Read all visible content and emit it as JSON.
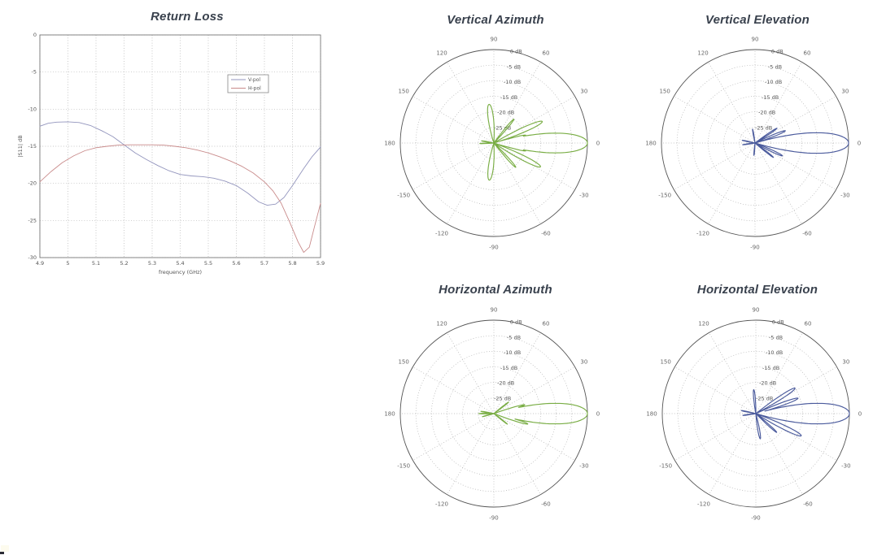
{
  "page": {
    "background": "#ffffff",
    "title_color": "#39414d",
    "grid_color": "#aaaaaa",
    "tick_color": "#555555"
  },
  "chart_data": [
    {
      "id": "return-loss",
      "type": "line",
      "title": "Return Loss",
      "xlabel": "frequency (GHz)",
      "ylabel": "|S11| dB",
      "xlim": [
        4.9,
        5.9
      ],
      "ylim": [
        -30,
        0
      ],
      "xticks": [
        "4.9",
        "5",
        "5.1",
        "5.2",
        "5.3",
        "5.4",
        "5.5",
        "5.6",
        "5.7",
        "5.8",
        "5.9"
      ],
      "yticks": [
        "0",
        "-5",
        "-10",
        "-15",
        "-20",
        "-25",
        "-30"
      ],
      "grid": true,
      "legend_position": "upper middle-right",
      "series": [
        {
          "name": "V-pol",
          "color": "#9395bd",
          "x": [
            4.9,
            4.93,
            4.96,
            5.0,
            5.04,
            5.08,
            5.12,
            5.16,
            5.2,
            5.24,
            5.28,
            5.32,
            5.36,
            5.4,
            5.44,
            5.48,
            5.52,
            5.56,
            5.6,
            5.64,
            5.68,
            5.71,
            5.74,
            5.77,
            5.8,
            5.84,
            5.87,
            5.9
          ],
          "y": [
            -12.3,
            -11.9,
            -11.75,
            -11.7,
            -11.8,
            -12.2,
            -12.9,
            -13.7,
            -14.8,
            -15.9,
            -16.8,
            -17.6,
            -18.3,
            -18.8,
            -19.0,
            -19.1,
            -19.3,
            -19.7,
            -20.3,
            -21.3,
            -22.5,
            -22.95,
            -22.8,
            -21.9,
            -20.3,
            -18.0,
            -16.4,
            -15.1
          ]
        },
        {
          "name": "H-pol",
          "color": "#c98b8b",
          "x": [
            4.9,
            4.94,
            4.98,
            5.02,
            5.06,
            5.1,
            5.14,
            5.18,
            5.22,
            5.26,
            5.3,
            5.34,
            5.38,
            5.42,
            5.46,
            5.5,
            5.54,
            5.58,
            5.62,
            5.66,
            5.7,
            5.73,
            5.76,
            5.79,
            5.82,
            5.84,
            5.86,
            5.88,
            5.9
          ],
          "y": [
            -19.8,
            -18.4,
            -17.2,
            -16.3,
            -15.6,
            -15.2,
            -15.0,
            -14.85,
            -14.8,
            -14.8,
            -14.8,
            -14.85,
            -15.0,
            -15.2,
            -15.5,
            -15.9,
            -16.4,
            -17.0,
            -17.7,
            -18.6,
            -19.8,
            -21.0,
            -22.7,
            -25.2,
            -27.9,
            -29.3,
            -28.6,
            -25.6,
            -22.7
          ]
        }
      ]
    },
    {
      "id": "vertical-azimuth",
      "type": "polar",
      "title": "Vertical Azimuth",
      "color": "#79ad44",
      "r_axis_labels": [
        "0 dB",
        "-5 dB",
        "-10 dB",
        "-15 dB",
        "-20 dB",
        "-25 dB"
      ],
      "r_axis_dB": [
        0,
        -5,
        -10,
        -15,
        -20,
        -25
      ],
      "r_floor_dB": -30,
      "angle_ticks_deg": [
        0,
        30,
        60,
        90,
        120,
        150,
        180,
        -150,
        -120,
        -90,
        -60,
        -30
      ],
      "main_beam_deg": 0,
      "peak_dB": 0,
      "lobes": [
        {
          "angle_deg": 0,
          "peak_dB": 0,
          "halfwidth_deg": 5.0
        },
        {
          "angle_deg": 14,
          "peak_dB": -19.5,
          "halfwidth_deg": 1.6
        },
        {
          "angle_deg": 24,
          "peak_dB": -13.0,
          "halfwidth_deg": 2.8
        },
        {
          "angle_deg": 50,
          "peak_dB": -20.0,
          "halfwidth_deg": 2.2
        },
        {
          "angle_deg": 97,
          "peak_dB": -17.5,
          "halfwidth_deg": 5.0
        },
        {
          "angle_deg": 170,
          "peak_dB": -26.0,
          "halfwidth_deg": 2.3
        },
        {
          "angle_deg": -178,
          "peak_dB": -25.5,
          "halfwidth_deg": 2.0
        },
        {
          "angle_deg": -97,
          "peak_dB": -18.0,
          "halfwidth_deg": 5.0
        },
        {
          "angle_deg": -48,
          "peak_dB": -19.5,
          "halfwidth_deg": 2.2
        },
        {
          "angle_deg": -27,
          "peak_dB": -13.2,
          "halfwidth_deg": 2.8
        },
        {
          "angle_deg": -14,
          "peak_dB": -19.5,
          "halfwidth_deg": 1.6
        }
      ]
    },
    {
      "id": "vertical-elevation",
      "type": "polar",
      "title": "Vertical Elevation",
      "color": "#4a5a9c",
      "r_axis_labels": [
        "0 dB",
        "-5 dB",
        "-10 dB",
        "-15 dB",
        "-20 dB",
        "-25 dB"
      ],
      "r_axis_dB": [
        0,
        -5,
        -10,
        -15,
        -20,
        -25
      ],
      "r_floor_dB": -30,
      "angle_ticks_deg": [
        0,
        30,
        60,
        90,
        120,
        150,
        180,
        -150,
        -120,
        -90,
        -60,
        -30
      ],
      "main_beam_deg": 0,
      "peak_dB": 0,
      "lobes": [
        {
          "angle_deg": 0,
          "peak_dB": 0,
          "halfwidth_deg": 5.2
        },
        {
          "angle_deg": 22,
          "peak_dB": -19.5,
          "halfwidth_deg": 2.4
        },
        {
          "angle_deg": 34,
          "peak_dB": -21.5,
          "halfwidth_deg": 2.0
        },
        {
          "angle_deg": 100,
          "peak_dB": -25.5,
          "halfwidth_deg": 2.5
        },
        {
          "angle_deg": 168,
          "peak_dB": -25.8,
          "halfwidth_deg": 2.2
        },
        {
          "angle_deg": -172,
          "peak_dB": -26.0,
          "halfwidth_deg": 2.2
        },
        {
          "angle_deg": -95,
          "peak_dB": -26.0,
          "halfwidth_deg": 2.5
        },
        {
          "angle_deg": -38,
          "peak_dB": -22.5,
          "halfwidth_deg": 2.0
        },
        {
          "angle_deg": -25,
          "peak_dB": -20.3,
          "halfwidth_deg": 2.4
        }
      ]
    },
    {
      "id": "horizontal-azimuth",
      "type": "polar",
      "title": "Horizontal Azimuth",
      "color": "#79ad44",
      "r_axis_labels": [
        "0 dB",
        "-5 dB",
        "-10 dB",
        "-15 dB",
        "-20 dB",
        "-25 dB"
      ],
      "r_axis_dB": [
        0,
        -5,
        -10,
        -15,
        -20,
        -25
      ],
      "r_floor_dB": -30,
      "angle_ticks_deg": [
        0,
        30,
        60,
        90,
        120,
        150,
        180,
        -150,
        -120,
        -90,
        -60,
        -30
      ],
      "main_beam_deg": 0,
      "peak_dB": 0,
      "lobes": [
        {
          "angle_deg": 0,
          "peak_dB": 0,
          "halfwidth_deg": 5.2
        },
        {
          "angle_deg": 16,
          "peak_dB": -19.7,
          "halfwidth_deg": 1.9
        },
        {
          "angle_deg": 38,
          "peak_dB": -24.0,
          "halfwidth_deg": 1.8
        },
        {
          "angle_deg": 170,
          "peak_dB": -25.8,
          "halfwidth_deg": 2.2
        },
        {
          "angle_deg": 180,
          "peak_dB": -25.2,
          "halfwidth_deg": 2.0
        },
        {
          "angle_deg": -165,
          "peak_dB": -26.2,
          "halfwidth_deg": 2.0
        },
        {
          "angle_deg": -38,
          "peak_dB": -24.5,
          "halfwidth_deg": 1.8
        },
        {
          "angle_deg": -17,
          "peak_dB": -18.6,
          "halfwidth_deg": 2.1
        }
      ]
    },
    {
      "id": "horizontal-elevation",
      "type": "polar",
      "title": "Horizontal Elevation",
      "color": "#4a5a9c",
      "r_axis_labels": [
        "0 dB",
        "-5 dB",
        "-10 dB",
        "-15 dB",
        "-20 dB",
        "-25 dB"
      ],
      "r_axis_dB": [
        0,
        -5,
        -10,
        -15,
        -20,
        -25
      ],
      "r_floor_dB": -30,
      "angle_ticks_deg": [
        0,
        30,
        60,
        90,
        120,
        150,
        180,
        -150,
        -120,
        -90,
        -60,
        -30
      ],
      "main_beam_deg": 0,
      "peak_dB": 0,
      "lobes": [
        {
          "angle_deg": 0,
          "peak_dB": 0,
          "halfwidth_deg": 5.2
        },
        {
          "angle_deg": 20,
          "peak_dB": -15.6,
          "halfwidth_deg": 2.2
        },
        {
          "angle_deg": 33,
          "peak_dB": -15.0,
          "halfwidth_deg": 2.4
        },
        {
          "angle_deg": 95,
          "peak_dB": -22.3,
          "halfwidth_deg": 3.2
        },
        {
          "angle_deg": 168,
          "peak_dB": -25.3,
          "halfwidth_deg": 2.2
        },
        {
          "angle_deg": -172,
          "peak_dB": -25.8,
          "halfwidth_deg": 2.2
        },
        {
          "angle_deg": -80,
          "peak_dB": -21.8,
          "halfwidth_deg": 3.2
        },
        {
          "angle_deg": -42,
          "peak_dB": -21.0,
          "halfwidth_deg": 2.0
        },
        {
          "angle_deg": -26,
          "peak_dB": -13.8,
          "halfwidth_deg": 2.6
        }
      ]
    }
  ]
}
